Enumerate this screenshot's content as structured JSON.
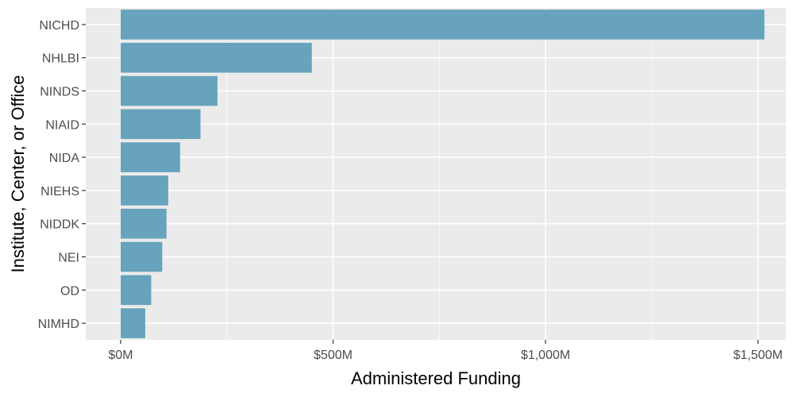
{
  "chart_data": {
    "type": "bar",
    "orientation": "horizontal",
    "title": "",
    "xlabel": "Administered Funding",
    "ylabel": "Institute, Center, or Office",
    "categories": [
      "NICHD",
      "NHLBI",
      "NINDS",
      "NIAID",
      "NIDA",
      "NIEHS",
      "NIDDK",
      "NEI",
      "OD",
      "NIMHD"
    ],
    "values": [
      1515,
      450,
      228,
      188,
      140,
      112,
      108,
      98,
      72,
      58
    ],
    "xlim": [
      -82,
      1566
    ],
    "x_ticks": [
      0,
      500,
      1000,
      1500
    ],
    "x_tick_labels": [
      "$0M",
      "$500M",
      "$1,000M",
      "$1,500M"
    ],
    "grid": true,
    "legend": "none",
    "colors": {
      "bar": "#67a3bc",
      "panel": "#ebebeb",
      "grid": "#ffffff",
      "tick_text": "#4d4d4d",
      "tick_mark": "#333333"
    }
  }
}
